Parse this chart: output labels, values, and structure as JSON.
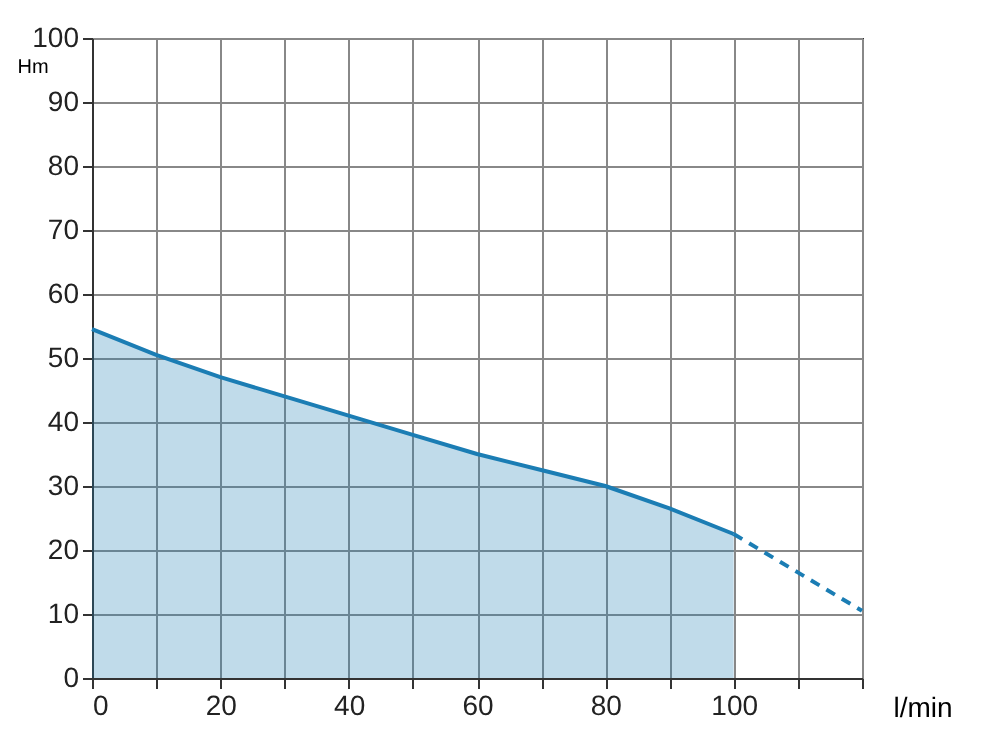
{
  "chart_data": {
    "type": "area",
    "xlabel": "l/min",
    "ylabel": "Hm",
    "x": [
      0,
      10,
      20,
      30,
      40,
      50,
      60,
      70,
      80,
      90,
      100
    ],
    "series": [
      {
        "type": "area",
        "color": "#1b7db4",
        "values": [
          54.5,
          50.5,
          47,
          44,
          41,
          38,
          35,
          32.5,
          30,
          26.5,
          22.5
        ]
      },
      {
        "type": "line",
        "line_style": "dashed",
        "color": "#1b7db4",
        "x": [
          100,
          110,
          120
        ],
        "values": [
          22.5,
          16.5,
          10.5
        ]
      }
    ],
    "xlim": [
      0,
      120
    ],
    "xticks": [
      0,
      {
        "value": 10,
        "label": null
      },
      20,
      {
        "value": 30,
        "label": null
      },
      40,
      {
        "value": 50,
        "label": null
      },
      60,
      {
        "value": 70,
        "label": null
      },
      80,
      {
        "value": 90,
        "label": null
      },
      100,
      {
        "value": 110,
        "label": null
      },
      {
        "value": 120,
        "label": null
      }
    ],
    "ylim": [
      0,
      100
    ],
    "yticks": [
      0,
      10,
      20,
      30,
      40,
      50,
      60,
      70,
      80,
      90,
      100
    ],
    "grid": true
  }
}
